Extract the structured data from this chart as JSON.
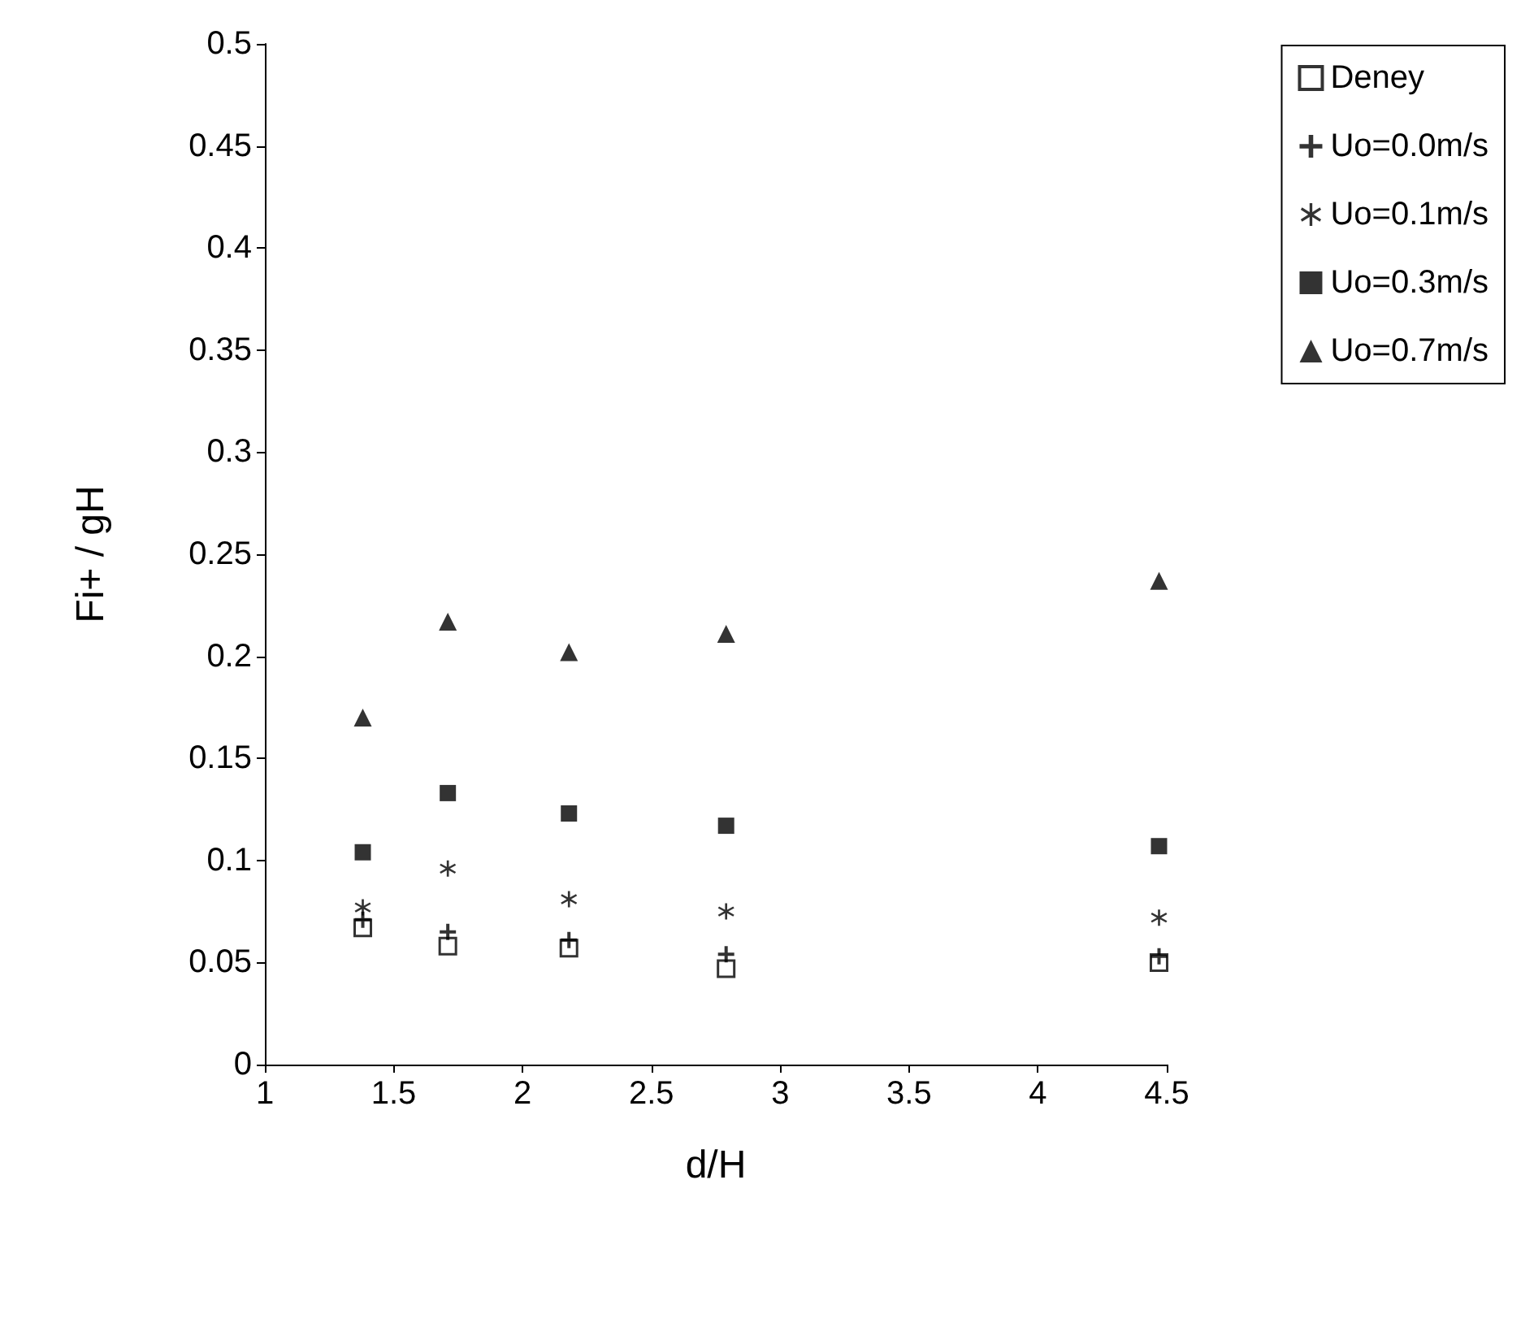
{
  "chart_data": {
    "type": "scatter",
    "xlabel": "d/H",
    "ylabel": "Fi+ / gH",
    "xlim": [
      1,
      4.5
    ],
    "xticks": [
      1,
      1.5,
      2,
      2.5,
      3,
      3.5,
      4,
      4.5
    ],
    "ylim": [
      0,
      0.5
    ],
    "yticks": [
      0,
      0.05,
      0.1,
      0.15,
      0.2,
      0.25,
      0.3,
      0.35,
      0.4,
      0.45,
      0.5
    ],
    "grid": false,
    "legend": "top right",
    "x": [
      1.38,
      1.71,
      2.18,
      2.79,
      4.47
    ],
    "series": [
      {
        "name": "Deney",
        "color": "#ffffff",
        "marker": "square",
        "values": [
          0.067,
          0.058,
          0.057,
          0.047,
          0.05
        ]
      },
      {
        "name": "Uo=0.0m/s",
        "color": "#000000",
        "marker": "cross",
        "values": [
          0.071,
          0.065,
          0.061,
          0.054,
          0.053
        ]
      },
      {
        "name": "Uo=0.1m/s",
        "color": "#000000",
        "marker": "star",
        "values": [
          0.077,
          0.096,
          0.081,
          0.075,
          0.072
        ]
      },
      {
        "name": "Uo=0.3m/s",
        "color": "#000000",
        "marker": "square",
        "values": [
          0.104,
          0.133,
          0.123,
          0.117,
          0.107
        ]
      },
      {
        "name": "Uo=0.7m/s",
        "color": "#000000",
        "marker": "triangle",
        "values": [
          0.17,
          0.217,
          0.202,
          0.211,
          0.237
        ]
      }
    ]
  }
}
